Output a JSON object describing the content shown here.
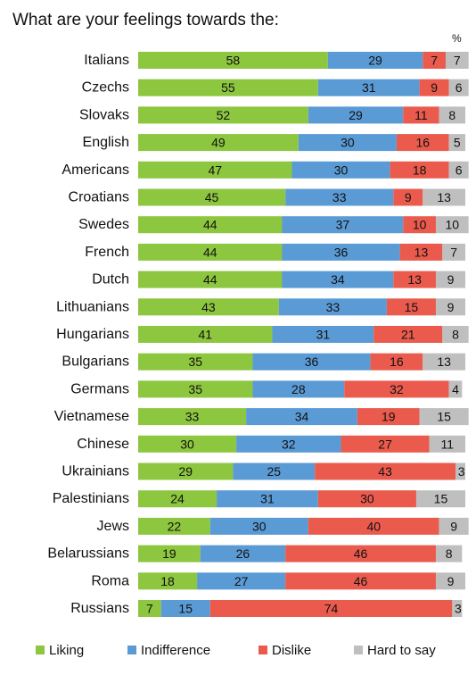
{
  "chart_data": {
    "type": "bar",
    "orientation": "horizontal",
    "stacked": true,
    "title": "What are your feelings towards the:",
    "unit": "%",
    "xlim": [
      0,
      100
    ],
    "grid": false,
    "legend_position": "bottom",
    "categories": [
      "Italians",
      "Czechs",
      "Slovaks",
      "English",
      "Americans",
      "Croatians",
      "Swedes",
      "French",
      "Dutch",
      "Lithuanians",
      "Hungarians",
      "Bulgarians",
      "Germans",
      "Vietnamese",
      "Chinese",
      "Ukrainians",
      "Palestinians",
      "Jews",
      "Belarussians",
      "Roma",
      "Russians"
    ],
    "series": [
      {
        "name": "Liking",
        "color": "#8DC63F",
        "values": [
          58,
          55,
          52,
          49,
          47,
          45,
          44,
          44,
          44,
          43,
          41,
          35,
          35,
          33,
          30,
          29,
          24,
          22,
          19,
          18,
          7
        ]
      },
      {
        "name": "Indifference",
        "color": "#5B9BD5",
        "values": [
          29,
          31,
          29,
          30,
          30,
          33,
          37,
          36,
          34,
          33,
          31,
          36,
          28,
          34,
          32,
          25,
          31,
          30,
          26,
          27,
          15
        ]
      },
      {
        "name": "Dislike",
        "color": "#EA5B4D",
        "values": [
          7,
          9,
          11,
          16,
          18,
          9,
          10,
          13,
          13,
          15,
          21,
          16,
          32,
          19,
          27,
          43,
          30,
          40,
          46,
          46,
          74
        ]
      },
      {
        "name": "Hard to say",
        "color": "#BFBFBF",
        "values": [
          7,
          6,
          8,
          5,
          6,
          13,
          10,
          7,
          9,
          9,
          8,
          13,
          4,
          15,
          11,
          3,
          15,
          9,
          8,
          9,
          3
        ]
      }
    ]
  }
}
